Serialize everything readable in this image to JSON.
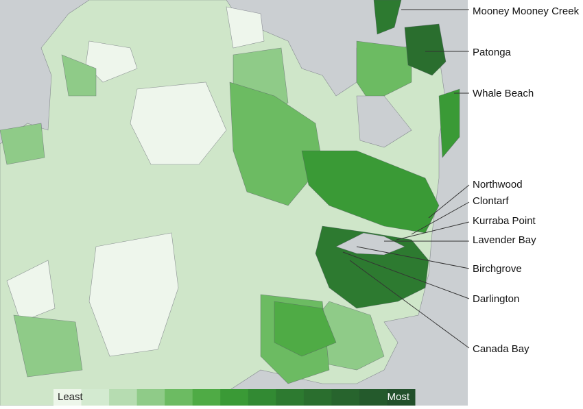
{
  "map": {
    "labels": [
      "Mooney Mooney Creek",
      "Patonga",
      "Whale Beach",
      "Northwood",
      "Clontarf",
      "Kurraba Point",
      "Lavender Bay",
      "Birchgrove",
      "Darlington",
      "Canada Bay"
    ]
  },
  "legend": {
    "least": "Least",
    "most": "Most",
    "colors": [
      "#edf6ea",
      "#d3ead0",
      "#b6dcb1",
      "#8fcb88",
      "#6cbb62",
      "#4fab45",
      "#3a9a36",
      "#328a33",
      "#2d7a30",
      "#2a6e2e",
      "#27642d",
      "#245a2c",
      "#22502b"
    ]
  }
}
